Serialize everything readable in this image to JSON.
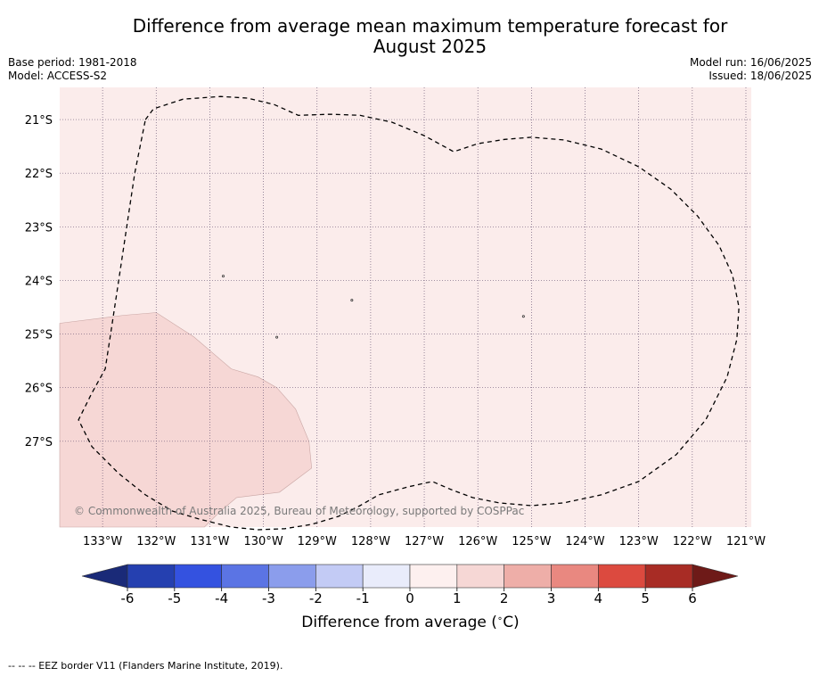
{
  "title_line1": "Difference from average mean maximum temperature forecast for",
  "title_line2": "August 2025",
  "meta_left": {
    "base_period": "Base period: 1981-2018",
    "model": "Model: ACCESS-S2"
  },
  "meta_right": {
    "model_run": "Model run: 16/06/2025",
    "issued": "Issued: 18/06/2025"
  },
  "copyright": "© Commonwealth of Australia 2025, Bureau of Meteorology, supported by COSPPac",
  "footnote": "-- -- -- EEZ border V11 (Flanders Marine Institute, 2019).",
  "colors": {
    "bin_0_1": "#fbeceb",
    "bin_1_2": "#f6d7d5",
    "eez_line": "#000000",
    "grid": "#6f5a78"
  },
  "chart_data": {
    "type": "map",
    "lon_labels": [
      "133°W",
      "132°W",
      "131°W",
      "130°W",
      "129°W",
      "128°W",
      "127°W",
      "126°W",
      "125°W",
      "124°W",
      "123°W",
      "122°W",
      "121°W"
    ],
    "lat_labels": [
      "21°S",
      "22°S",
      "23°S",
      "24°S",
      "25°S",
      "26°S",
      "27°S"
    ],
    "lon_values": [
      -133,
      -132,
      -131,
      -130,
      -129,
      -128,
      -127,
      -126,
      -125,
      -124,
      -123,
      -122,
      -121
    ],
    "lat_values": [
      -21,
      -22,
      -23,
      -24,
      -25,
      -26,
      -27
    ],
    "lon_range": [
      -133.8,
      -120.9
    ],
    "lat_range": [
      -28.6,
      -20.4
    ],
    "background_bin": "0 to 1",
    "regions": [
      {
        "bin": "1 to 2",
        "polygon": [
          [
            -133.8,
            -24.8
          ],
          [
            -132.6,
            -24.65
          ],
          [
            -132.0,
            -24.6
          ],
          [
            -131.3,
            -25.05
          ],
          [
            -130.6,
            -25.65
          ],
          [
            -130.1,
            -25.8
          ],
          [
            -129.75,
            -26.0
          ],
          [
            -129.4,
            -26.4
          ],
          [
            -129.15,
            -27.0
          ],
          [
            -129.1,
            -27.5
          ],
          [
            -129.7,
            -27.95
          ],
          [
            -130.5,
            -28.05
          ],
          [
            -130.8,
            -28.3
          ],
          [
            -131.1,
            -28.6
          ],
          [
            -133.8,
            -28.6
          ]
        ]
      }
    ],
    "eez_border": [
      [
        -132.2,
        -21.0
      ],
      [
        -132.05,
        -20.8
      ],
      [
        -131.5,
        -20.62
      ],
      [
        -130.8,
        -20.57
      ],
      [
        -130.3,
        -20.6
      ],
      [
        -129.8,
        -20.72
      ],
      [
        -129.35,
        -20.92
      ],
      [
        -128.75,
        -20.9
      ],
      [
        -128.2,
        -20.92
      ],
      [
        -127.6,
        -21.05
      ],
      [
        -127.0,
        -21.3
      ],
      [
        -126.45,
        -21.6
      ],
      [
        -126.0,
        -21.45
      ],
      [
        -125.5,
        -21.37
      ],
      [
        -125.0,
        -21.33
      ],
      [
        -124.4,
        -21.38
      ],
      [
        -123.7,
        -21.55
      ],
      [
        -123.0,
        -21.88
      ],
      [
        -122.4,
        -22.3
      ],
      [
        -121.9,
        -22.8
      ],
      [
        -121.5,
        -23.35
      ],
      [
        -121.25,
        -23.9
      ],
      [
        -121.13,
        -24.5
      ],
      [
        -121.17,
        -25.1
      ],
      [
        -121.35,
        -25.8
      ],
      [
        -121.75,
        -26.6
      ],
      [
        -122.3,
        -27.25
      ],
      [
        -123.0,
        -27.75
      ],
      [
        -123.7,
        -28.0
      ],
      [
        -124.4,
        -28.15
      ],
      [
        -125.0,
        -28.2
      ],
      [
        -125.6,
        -28.15
      ],
      [
        -126.1,
        -28.05
      ],
      [
        -126.5,
        -27.9
      ],
      [
        -126.85,
        -27.75
      ],
      [
        -127.3,
        -27.85
      ],
      [
        -127.85,
        -28.0
      ],
      [
        -128.2,
        -28.2
      ],
      [
        -128.6,
        -28.4
      ],
      [
        -129.1,
        -28.55
      ],
      [
        -129.6,
        -28.63
      ],
      [
        -130.1,
        -28.65
      ],
      [
        -130.6,
        -28.6
      ],
      [
        -131.2,
        -28.45
      ],
      [
        -131.7,
        -28.3
      ],
      [
        -132.2,
        -28.0
      ],
      [
        -132.7,
        -27.6
      ],
      [
        -133.2,
        -27.1
      ],
      [
        -133.45,
        -26.6
      ],
      [
        -133.2,
        -26.1
      ],
      [
        -132.95,
        -25.65
      ],
      [
        -132.85,
        -25.0
      ],
      [
        -132.7,
        -24.0
      ],
      [
        -132.55,
        -23.0
      ],
      [
        -132.4,
        -22.0
      ],
      [
        -132.2,
        -21.0
      ]
    ],
    "islands": [
      [
        -130.75,
        -23.92
      ],
      [
        -129.75,
        -25.06
      ],
      [
        -128.35,
        -24.37
      ],
      [
        -125.15,
        -24.67
      ]
    ],
    "colorbar": {
      "label": "Difference from average (°C)",
      "label_main": "Difference from average (",
      "label_unit": "C)",
      "ticks": [
        "-6",
        "-5",
        "-4",
        "-3",
        "-2",
        "-1",
        "0",
        "1",
        "2",
        "3",
        "4",
        "5",
        "6"
      ],
      "tick_values": [
        -6,
        -5,
        -4,
        -3,
        -2,
        -1,
        0,
        1,
        2,
        3,
        4,
        5,
        6
      ],
      "under_color": "#1a2a78",
      "over_color": "#6e1a18",
      "colors": [
        "#2540b0",
        "#3452e0",
        "#5b74e4",
        "#8b9dec",
        "#c3cbf5",
        "#e9ecfb",
        "#fdf0ef",
        "#f6d7d5",
        "#eeaea8",
        "#e98880",
        "#dc4a3f",
        "#a82c25"
      ]
    }
  }
}
